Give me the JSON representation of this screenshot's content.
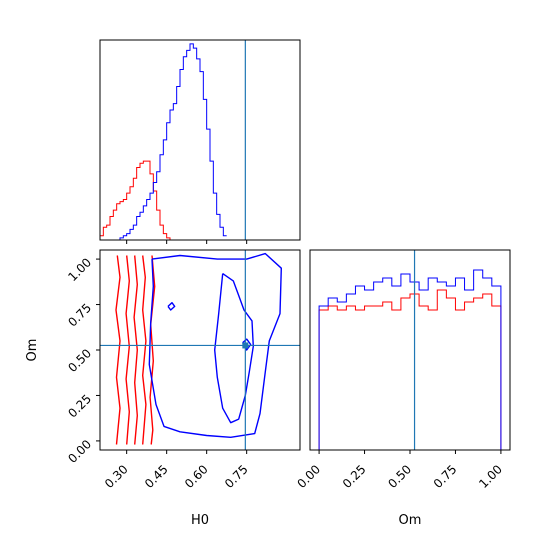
{
  "chart_data": [
    {
      "type": "histogram",
      "panel": "H0 marginal (top-left)",
      "xlim": [
        0.2,
        0.95
      ],
      "truth": 0.745,
      "bin_width": 0.0125,
      "series": [
        {
          "name": "",
          "color": "#ff0000",
          "x_start": 0.2,
          "counts": [
            2,
            6,
            7,
            11,
            14,
            17,
            18,
            19,
            22,
            25,
            29,
            34,
            36,
            37,
            37,
            31,
            23,
            14,
            7,
            3,
            1,
            0
          ]
        },
        {
          "name": "",
          "color": "#0000ff",
          "x_start": 0.2,
          "counts": [
            0,
            0,
            0,
            0,
            0,
            0,
            1,
            2,
            3,
            5,
            7,
            11,
            13,
            16,
            19,
            22,
            27,
            32,
            40,
            47,
            55,
            61,
            64,
            72,
            80,
            86,
            89,
            92,
            90,
            85,
            79,
            66,
            52,
            37,
            22,
            12,
            6,
            2
          ]
        }
      ]
    },
    {
      "type": "contour",
      "panel": "H0 vs Om joint (bottom-left)",
      "xlabel": "H0",
      "ylabel": "Om",
      "xlim": [
        0.2,
        0.95
      ],
      "ylim": [
        -0.05,
        1.05
      ],
      "xticks": [
        "0.30",
        "0.45",
        "0.60",
        "0.75"
      ],
      "yticks": [
        "0.00",
        "0.25",
        "0.50",
        "0.75",
        "1.00"
      ],
      "truth": [
        0.745,
        0.525
      ],
      "series": [
        {
          "name": "",
          "color": "#ff0000",
          "levels": [
            [
              [
                0.265,
                1.02
              ],
              [
                0.275,
                0.9
              ],
              [
                0.26,
                0.72
              ],
              [
                0.275,
                0.55
              ],
              [
                0.262,
                0.35
              ],
              [
                0.275,
                0.18
              ],
              [
                0.262,
                -0.02
              ]
            ],
            [
              [
                0.3,
                1.02
              ],
              [
                0.31,
                0.88
              ],
              [
                0.298,
                0.7
              ],
              [
                0.31,
                0.52
              ],
              [
                0.298,
                0.34
              ],
              [
                0.31,
                0.16
              ],
              [
                0.3,
                -0.02
              ]
            ],
            [
              [
                0.33,
                1.02
              ],
              [
                0.34,
                0.86
              ],
              [
                0.328,
                0.68
              ],
              [
                0.34,
                0.5
              ],
              [
                0.33,
                0.32
              ],
              [
                0.34,
                0.14
              ],
              [
                0.33,
                -0.02
              ]
            ],
            [
              [
                0.36,
                1.02
              ],
              [
                0.37,
                0.9
              ],
              [
                0.36,
                0.72
              ],
              [
                0.372,
                0.55
              ],
              [
                0.36,
                0.36
              ],
              [
                0.372,
                0.2
              ],
              [
                0.36,
                -0.02
              ]
            ],
            [
              [
                0.395,
                1.02
              ],
              [
                0.405,
                0.85
              ],
              [
                0.39,
                0.64
              ],
              [
                0.4,
                0.44
              ],
              [
                0.388,
                0.24
              ],
              [
                0.398,
                0.06
              ],
              [
                0.392,
                -0.02
              ]
            ]
          ]
        },
        {
          "name": "",
          "color": "#0000ff",
          "levels": [
            [
              [
                0.395,
                1.0
              ],
              [
                0.5,
                1.02
              ],
              [
                0.64,
                1.0
              ],
              [
                0.75,
                1.0
              ],
              [
                0.82,
                1.03
              ],
              [
                0.88,
                0.95
              ],
              [
                0.875,
                0.7
              ],
              [
                0.835,
                0.55
              ],
              [
                0.82,
                0.38
              ],
              [
                0.8,
                0.15
              ],
              [
                0.78,
                0.04
              ],
              [
                0.69,
                0.02
              ],
              [
                0.6,
                0.03
              ],
              [
                0.5,
                0.05
              ],
              [
                0.44,
                0.08
              ],
              [
                0.41,
                0.2
              ],
              [
                0.385,
                0.42
              ],
              [
                0.39,
                0.65
              ],
              [
                0.4,
                0.85
              ],
              [
                0.395,
                1.0
              ]
            ],
            [
              [
                0.66,
                0.92
              ],
              [
                0.7,
                0.88
              ],
              [
                0.72,
                0.8
              ],
              [
                0.74,
                0.72
              ],
              [
                0.77,
                0.66
              ],
              [
                0.775,
                0.52
              ],
              [
                0.76,
                0.38
              ],
              [
                0.745,
                0.25
              ],
              [
                0.72,
                0.12
              ],
              [
                0.69,
                0.1
              ],
              [
                0.66,
                0.18
              ],
              [
                0.64,
                0.35
              ],
              [
                0.63,
                0.5
              ],
              [
                0.645,
                0.7
              ],
              [
                0.66,
                0.92
              ]
            ],
            [
              [
                0.735,
                0.54
              ],
              [
                0.75,
                0.56
              ],
              [
                0.765,
                0.53
              ],
              [
                0.75,
                0.5
              ],
              [
                0.735,
                0.54
              ]
            ],
            [
              [
                0.455,
                0.74
              ],
              [
                0.47,
                0.76
              ],
              [
                0.48,
                0.74
              ],
              [
                0.465,
                0.72
              ],
              [
                0.455,
                0.74
              ]
            ]
          ]
        }
      ]
    },
    {
      "type": "histogram",
      "panel": "Om marginal (bottom-right)",
      "xlabel": "Om",
      "xlim": [
        -0.05,
        1.05
      ],
      "xticks": [
        "0.00",
        "0.25",
        "0.50",
        "0.75",
        "1.00"
      ],
      "truth": 0.525,
      "bin_width": 0.05,
      "series": [
        {
          "name": "",
          "color": "#ff0000",
          "x_start": 0.0,
          "counts": [
            0.7,
            0.72,
            0.7,
            0.72,
            0.7,
            0.72,
            0.72,
            0.74,
            0.7,
            0.76,
            0.78,
            0.72,
            0.7,
            0.8,
            0.76,
            0.7,
            0.74,
            0.76,
            0.78,
            0.72
          ]
        },
        {
          "name": "",
          "color": "#0000ff",
          "x_start": 0.0,
          "counts": [
            0.72,
            0.76,
            0.74,
            0.78,
            0.82,
            0.8,
            0.84,
            0.86,
            0.82,
            0.88,
            0.84,
            0.8,
            0.86,
            0.84,
            0.82,
            0.86,
            0.8,
            0.9,
            0.86,
            0.82
          ]
        }
      ]
    }
  ]
}
